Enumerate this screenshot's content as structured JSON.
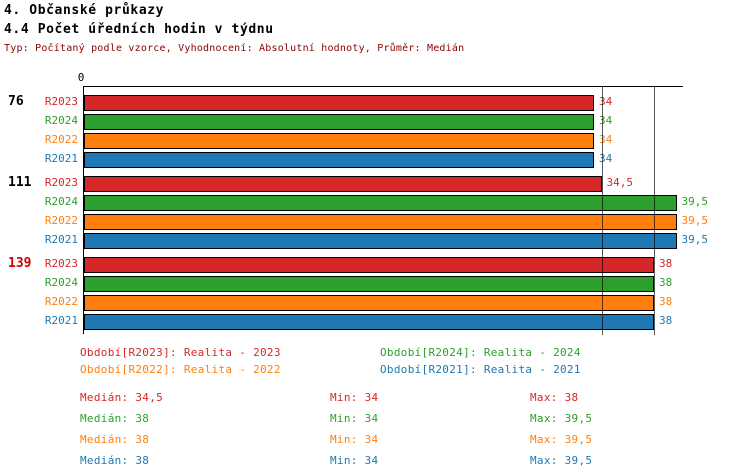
{
  "header": {
    "title": "4. Občanské průkazy",
    "subtitle": "4.4 Počet úředních hodin v týdnu",
    "meta": "Typ: Počítaný podle vzorce, Vyhodnocení: Absolutní hodnoty, Průměr: Medián"
  },
  "chart_data": {
    "type": "bar",
    "orientation": "horizontal",
    "title": "4. Občanské průkazy",
    "subtitle": "4.4 Počet úředních hodin v týdnu",
    "meta": "Typ: Počítaný podle vzorce, Vyhodnocení: Absolutní hodnoty, Průměr: Medián",
    "xlim": [
      0,
      40
    ],
    "origin_label": "0",
    "grid": "off",
    "reference_lines": [
      34.5,
      38
    ],
    "series_order": [
      "R2023",
      "R2024",
      "R2022",
      "R2021"
    ],
    "series_colors": {
      "R2023": "#d62728",
      "R2024": "#2ca02c",
      "R2022": "#ff7f0e",
      "R2021": "#1f77b4"
    },
    "groups": [
      {
        "label": "76",
        "label_color": "#000000",
        "bars": [
          {
            "series": "R2023",
            "value": 34,
            "display": "34"
          },
          {
            "series": "R2024",
            "value": 34,
            "display": "34"
          },
          {
            "series": "R2022",
            "value": 34,
            "display": "34"
          },
          {
            "series": "R2021",
            "value": 34,
            "display": "34"
          }
        ]
      },
      {
        "label": "111",
        "label_color": "#000000",
        "bars": [
          {
            "series": "R2023",
            "value": 34.5,
            "display": "34,5"
          },
          {
            "series": "R2024",
            "value": 39.5,
            "display": "39,5"
          },
          {
            "series": "R2022",
            "value": 39.5,
            "display": "39,5"
          },
          {
            "series": "R2021",
            "value": 39.5,
            "display": "39,5"
          }
        ]
      },
      {
        "label": "139",
        "label_color": "#cc0000",
        "bars": [
          {
            "series": "R2023",
            "value": 38,
            "display": "38"
          },
          {
            "series": "R2024",
            "value": 38,
            "display": "38"
          },
          {
            "series": "R2022",
            "value": 38,
            "display": "38"
          },
          {
            "series": "R2021",
            "value": 38,
            "display": "38"
          }
        ]
      }
    ],
    "legend": [
      {
        "series": "R2023",
        "label": "Období[R2023]: Realita - 2023"
      },
      {
        "series": "R2024",
        "label": "Období[R2024]: Realita - 2024"
      },
      {
        "series": "R2022",
        "label": "Období[R2022]: Realita - 2022"
      },
      {
        "series": "R2021",
        "label": "Období[R2021]: Realita - 2021"
      }
    ],
    "stats": [
      {
        "series": "R2023",
        "median": "Medián: 34,5",
        "min": "Min: 34",
        "max": "Max: 38"
      },
      {
        "series": "R2024",
        "median": "Medián: 38",
        "min": "Min: 34",
        "max": "Max: 39,5"
      },
      {
        "series": "R2022",
        "median": "Medián: 38",
        "min": "Min: 34",
        "max": "Max: 39,5"
      },
      {
        "series": "R2021",
        "median": "Medián: 38",
        "min": "Min: 34",
        "max": "Max: 39,5"
      }
    ]
  }
}
